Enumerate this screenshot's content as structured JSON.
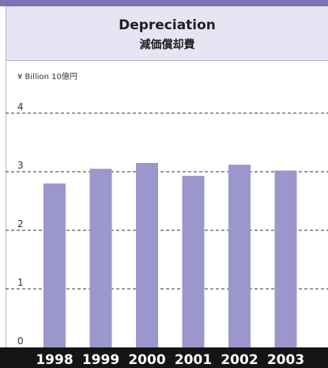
{
  "chart_data": {
    "type": "bar",
    "title": "Depreciation",
    "subtitle": "減価償却費",
    "unit_label": "¥ Billion  10億円",
    "categories": [
      "1998",
      "1999",
      "2000",
      "2001",
      "2002",
      "2003"
    ],
    "values": [
      2.8,
      3.05,
      3.15,
      2.93,
      3.12,
      3.02
    ],
    "yticks": [
      "0",
      "1",
      "2",
      "3",
      "4"
    ],
    "ylim": [
      0,
      4.5
    ],
    "grid": true,
    "bar_color": "#9b96cc",
    "grid_color": "#333333"
  },
  "colors": {
    "accent": "#7d74b6",
    "header_bg": "#e6e5f4",
    "axis_bar": "#151515"
  }
}
